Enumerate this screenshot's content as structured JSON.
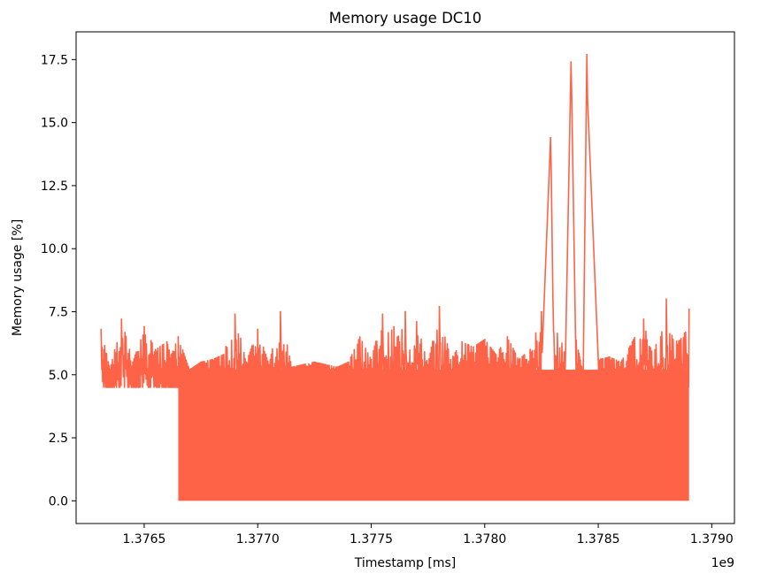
{
  "chart_data": {
    "type": "line",
    "title": "Memory usage DC10",
    "xlabel": "Timestamp [ms]",
    "ylabel": "Memory usage [%]",
    "x_offset_label": "1e9",
    "xlim": [
      1.3762,
      1.3791
    ],
    "ylim": [
      -0.9,
      18.6
    ],
    "x_ticks": [
      1.3765,
      1.377,
      1.3775,
      1.378,
      1.3785,
      1.379
    ],
    "x_tick_labels": [
      "1.3765",
      "1.3770",
      "1.3775",
      "1.3780",
      "1.3785",
      "1.3790"
    ],
    "y_ticks": [
      0.0,
      2.5,
      5.0,
      7.5,
      10.0,
      12.5,
      15.0,
      17.5
    ],
    "y_tick_labels": [
      "0.0",
      "2.5",
      "5.0",
      "7.5",
      "10.0",
      "12.5",
      "15.0",
      "17.5"
    ],
    "grid": false,
    "line_color": "#ff6347",
    "series": [
      {
        "x": [
          1.37631,
          1.37635,
          1.3764,
          1.37645,
          1.3765,
          1.37655,
          1.3766,
          1.37662,
          1.37665,
          1.3767,
          1.37675,
          1.3768,
          1.37685,
          1.3769,
          1.37695,
          1.377,
          1.37705,
          1.3771,
          1.37715,
          1.3772,
          1.37725,
          1.3773,
          1.37735,
          1.3774,
          1.37745,
          1.3775,
          1.37755,
          1.3776,
          1.37765,
          1.3777,
          1.37775,
          1.3778,
          1.37785,
          1.3779,
          1.37795,
          1.378,
          1.37805,
          1.3781,
          1.37815,
          1.3782,
          1.37825,
          1.37829,
          1.3783,
          1.37835,
          1.37838,
          1.3784,
          1.37843,
          1.37845,
          1.3785,
          1.37855,
          1.3786,
          1.37865,
          1.3787,
          1.37875,
          1.3788,
          1.37885,
          1.3789
        ],
        "y": [
          6.8,
          5.2,
          7.2,
          5.5,
          6.9,
          6.0,
          6.3,
          5.8,
          6.5,
          5.2,
          5.5,
          5.6,
          5.8,
          7.4,
          5.5,
          6.8,
          5.4,
          7.5,
          5.3,
          5.4,
          5.5,
          5.4,
          5.3,
          5.5,
          6.5,
          5.6,
          7.4,
          6.9,
          7.5,
          7.1,
          5.4,
          7.7,
          5.6,
          6.3,
          6.1,
          6.4,
          5.8,
          6.5,
          5.6,
          6.0,
          7.5,
          14.4,
          8.1,
          5.9,
          17.4,
          6.5,
          5.2,
          17.7,
          5.6,
          5.7,
          5.5,
          6.3,
          7.2,
          6.0,
          8.0,
          6.2,
          7.6
        ]
      }
    ],
    "dense_band_x_range": [
      1.37665,
      1.3789
    ],
    "dense_band_y_range": [
      0.0,
      5.2
    ]
  }
}
